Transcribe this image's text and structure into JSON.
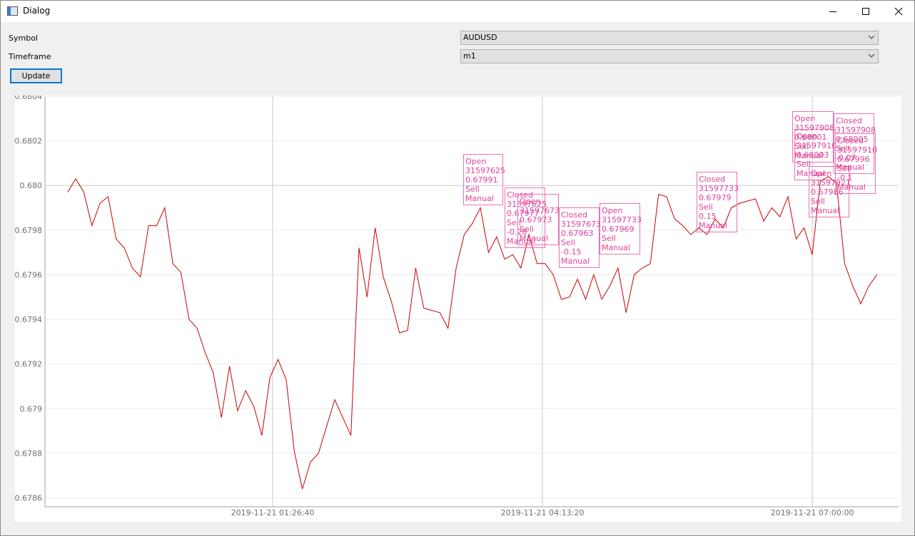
{
  "window": {
    "title": "Dialog"
  },
  "form": {
    "symbol_label": "Symbol",
    "symbol_value": "AUDUSD",
    "timeframe_label": "Timeframe",
    "timeframe_value": "m1",
    "update_button": "Update"
  },
  "chart_data": {
    "type": "line",
    "x": [
      "2019-11-20 23:20:00",
      "2019-11-20 23:25:00",
      "2019-11-20 23:30:00",
      "2019-11-20 23:35:00",
      "2019-11-20 23:40:00",
      "2019-11-20 23:45:00",
      "2019-11-20 23:50:00",
      "2019-11-20 23:55:00",
      "2019-11-21 00:00:00",
      "2019-11-21 00:05:00",
      "2019-11-21 00:10:00",
      "2019-11-21 00:15:00",
      "2019-11-21 00:20:00",
      "2019-11-21 00:25:00",
      "2019-11-21 00:30:00",
      "2019-11-21 00:35:00",
      "2019-11-21 00:40:00",
      "2019-11-21 00:45:00",
      "2019-11-21 00:50:00",
      "2019-11-21 00:55:00",
      "2019-11-21 01:00:00",
      "2019-11-21 01:05:00",
      "2019-11-21 01:10:00",
      "2019-11-21 01:15:00",
      "2019-11-21 01:20:00",
      "2019-11-21 01:25:00",
      "2019-11-21 01:30:00",
      "2019-11-21 01:35:00",
      "2019-11-21 01:40:00",
      "2019-11-21 01:45:00",
      "2019-11-21 01:50:00",
      "2019-11-21 01:55:00",
      "2019-11-21 02:00:00",
      "2019-11-21 02:05:00",
      "2019-11-21 02:10:00",
      "2019-11-21 02:15:00",
      "2019-11-21 02:20:00",
      "2019-11-21 02:25:00",
      "2019-11-21 02:30:00",
      "2019-11-21 02:35:00",
      "2019-11-21 02:40:00",
      "2019-11-21 02:45:00",
      "2019-11-21 02:50:00",
      "2019-11-21 02:55:00",
      "2019-11-21 03:00:00",
      "2019-11-21 03:05:00",
      "2019-11-21 03:10:00",
      "2019-11-21 03:15:00",
      "2019-11-21 03:20:00",
      "2019-11-21 03:25:00",
      "2019-11-21 03:30:00",
      "2019-11-21 03:35:00",
      "2019-11-21 03:40:00",
      "2019-11-21 03:45:00",
      "2019-11-21 03:50:00",
      "2019-11-21 03:55:00",
      "2019-11-21 04:00:00",
      "2019-11-21 04:05:00",
      "2019-11-21 04:10:00",
      "2019-11-21 04:15:00",
      "2019-11-21 04:20:00",
      "2019-11-21 04:25:00",
      "2019-11-21 04:30:00",
      "2019-11-21 04:35:00",
      "2019-11-21 04:40:00",
      "2019-11-21 04:45:00",
      "2019-11-21 04:50:00",
      "2019-11-21 04:55:00",
      "2019-11-21 05:00:00",
      "2019-11-21 05:05:00",
      "2019-11-21 05:10:00",
      "2019-11-21 05:15:00",
      "2019-11-21 05:20:00",
      "2019-11-21 05:25:00",
      "2019-11-21 05:30:00",
      "2019-11-21 05:35:00",
      "2019-11-21 05:40:00",
      "2019-11-21 05:45:00",
      "2019-11-21 05:50:00",
      "2019-11-21 05:55:00",
      "2019-11-21 06:00:00",
      "2019-11-21 06:05:00",
      "2019-11-21 06:10:00",
      "2019-11-21 06:15:00",
      "2019-11-21 06:20:00",
      "2019-11-21 06:25:00",
      "2019-11-21 06:30:00",
      "2019-11-21 06:35:00",
      "2019-11-21 06:40:00",
      "2019-11-21 06:45:00",
      "2019-11-21 06:50:00",
      "2019-11-21 06:55:00",
      "2019-11-21 07:00:00",
      "2019-11-21 07:05:00",
      "2019-11-21 07:10:00",
      "2019-11-21 07:15:00",
      "2019-11-21 07:20:00",
      "2019-11-21 07:25:00",
      "2019-11-21 07:30:00",
      "2019-11-21 07:35:00",
      "2019-11-21 07:40:00"
    ],
    "series": [
      {
        "color": "#cc0000",
        "values": [
          0.67997,
          0.68003,
          0.67997,
          0.67982,
          0.67992,
          0.67995,
          0.67976,
          0.67972,
          0.67963,
          0.67959,
          0.67982,
          0.67982,
          0.6799,
          0.67965,
          0.67961,
          0.6794,
          0.67936,
          0.67925,
          0.67916,
          0.67896,
          0.67919,
          0.67899,
          0.67908,
          0.67901,
          0.67888,
          0.67914,
          0.67922,
          0.67913,
          0.67881,
          0.67864,
          0.67876,
          0.6788,
          0.67892,
          0.67904,
          0.67896,
          0.67888,
          0.67972,
          0.6795,
          0.67981,
          0.67959,
          0.67948,
          0.67934,
          0.67935,
          0.67963,
          0.67945,
          0.67944,
          0.67943,
          0.67936,
          0.67963,
          0.67978,
          0.67983,
          0.6799,
          0.6797,
          0.67977,
          0.67967,
          0.67969,
          0.67963,
          0.67978,
          0.67965,
          0.67965,
          0.6796,
          0.67949,
          0.6795,
          0.67958,
          0.67949,
          0.6796,
          0.67949,
          0.67955,
          0.67963,
          0.67943,
          0.6796,
          0.67963,
          0.67965,
          0.67996,
          0.67995,
          0.67985,
          0.67982,
          0.67978,
          0.67981,
          0.67978,
          0.67985,
          0.67981,
          0.6799,
          0.67992,
          0.67993,
          0.67994,
          0.67984,
          0.6799,
          0.67986,
          0.67995,
          0.67976,
          0.67981,
          0.67969,
          0.68002,
          0.68004,
          0.68001,
          0.67965,
          0.67955,
          0.67947,
          0.67955,
          0.6796
        ]
      }
    ],
    "xlim": [
      "2019-11-20 23:06:00",
      "2019-11-21 07:53:20"
    ],
    "xticks": [
      "2019-11-21 01:26:40",
      "2019-11-21 04:13:20",
      "2019-11-21 07:00:00"
    ],
    "ylim": [
      0.67856,
      0.6804
    ],
    "yticks": [
      0.6786,
      0.6788,
      0.679,
      0.6792,
      0.6794,
      0.6796,
      0.6798,
      {
        "value": 0.68,
        "label": "0.680"
      },
      0.6802,
      0.6804
    ],
    "grid": true,
    "annotations": [
      {
        "lines": [
          "Open",
          "31597625",
          "0.67991",
          "Sell",
          "Manual"
        ]
      },
      {
        "lines": [
          "Closed",
          "31597625",
          "0.67977",
          "Sell",
          "-0.28",
          "Manual"
        ]
      },
      {
        "lines": [
          "Open",
          "31597673",
          "0.67973",
          "Sell",
          "Manual"
        ]
      },
      {
        "lines": [
          "Closed",
          "31597673",
          "0.67963",
          "Sell",
          "-0.15",
          "Manual"
        ]
      },
      {
        "lines": [
          "Open",
          "31597733",
          "0.67969",
          "Sell",
          "Manual"
        ]
      },
      {
        "lines": [
          "Closed",
          "31597733",
          "0.67979",
          "Sell",
          "0.15",
          "Manual"
        ]
      },
      {
        "lines": [
          "Open",
          "31597908",
          "0.68001",
          "Sell",
          "Manual"
        ]
      },
      {
        "lines": [
          "Open",
          "31597910",
          "0.68003",
          "Sell",
          "Manual"
        ]
      },
      {
        "lines": [
          "Open",
          "31597921",
          "0.67986",
          "Sell",
          "Manual"
        ]
      },
      {
        "lines": [
          "Closed",
          "31597908",
          "0.68005",
          "Sell",
          "-0.07",
          "Manual"
        ]
      },
      {
        "lines": [
          "Closed",
          "31597910",
          "0.67996",
          "Sell",
          "-0.1",
          "Manual"
        ]
      }
    ]
  }
}
